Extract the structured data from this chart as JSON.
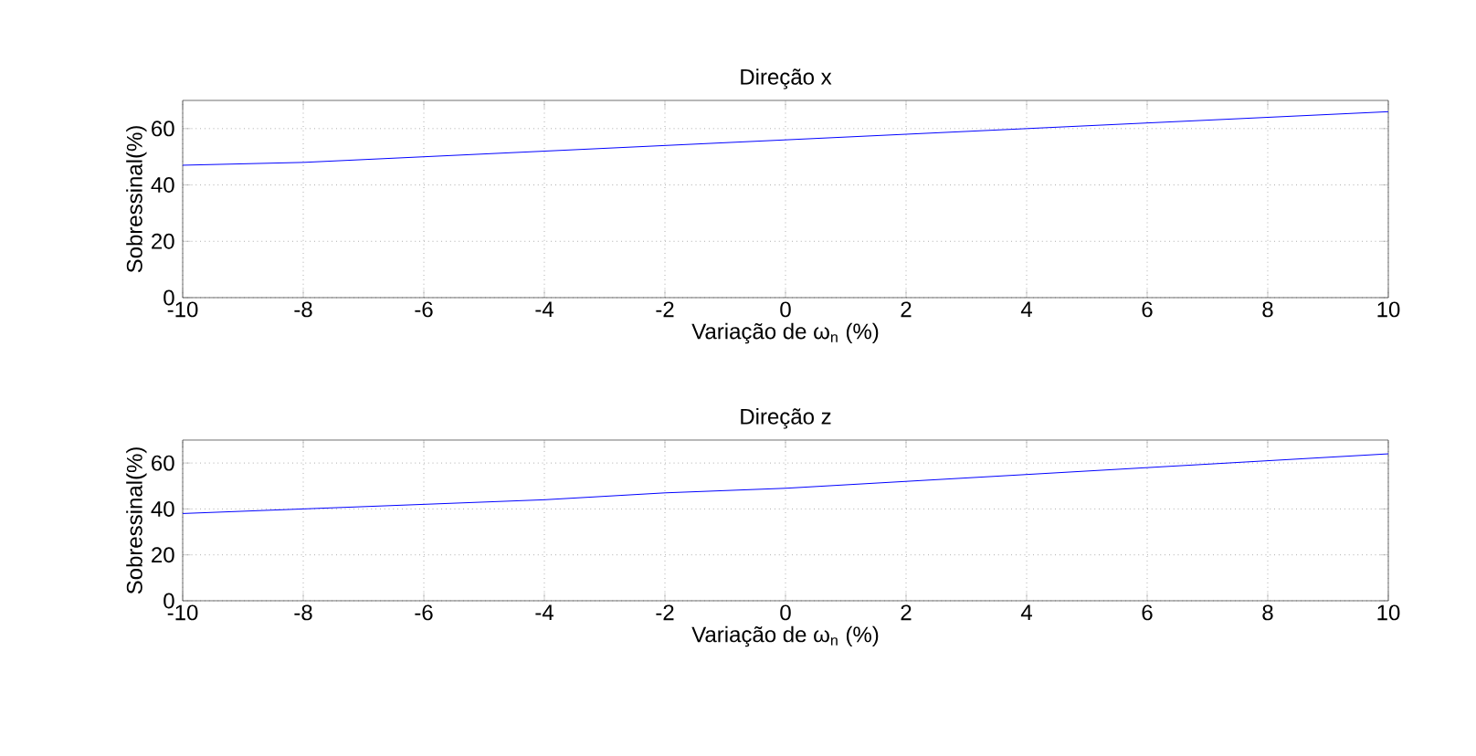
{
  "chart_data": [
    {
      "type": "line",
      "title": "Direção x",
      "xlabel": "Variação de ω$_{n}$ (%)",
      "ylabel": "Sobressinal(%)",
      "x": [
        -10,
        -8,
        -6,
        -4,
        -2,
        0,
        2,
        4,
        6,
        8,
        10
      ],
      "series": [
        {
          "color": "#0000ff",
          "values": [
            47,
            48,
            50,
            52,
            54,
            56,
            58,
            60,
            62,
            64,
            66
          ]
        }
      ],
      "xlim": [
        -10,
        10
      ],
      "ylim": [
        0,
        70
      ],
      "xticks": [
        -10,
        -8,
        -6,
        -4,
        -2,
        0,
        2,
        4,
        6,
        8,
        10
      ],
      "yticks": [
        0,
        20,
        40,
        60
      ],
      "grid": true,
      "marker": "none",
      "line_style": "solid"
    },
    {
      "type": "line",
      "title": "Direção z",
      "xlabel": "Variação de ω$_{n}$ (%)",
      "ylabel": "Sobressinal(%)",
      "x": [
        -10,
        -8,
        -6,
        -4,
        -2,
        0,
        2,
        4,
        6,
        8,
        10
      ],
      "series": [
        {
          "color": "#0000ff",
          "values": [
            38,
            40,
            42,
            44,
            47,
            49,
            52,
            55,
            58,
            61,
            64
          ]
        }
      ],
      "xlim": [
        -10,
        10
      ],
      "ylim": [
        0,
        70
      ],
      "xticks": [
        -10,
        -8,
        -6,
        -4,
        -2,
        0,
        2,
        4,
        6,
        8,
        10
      ],
      "yticks": [
        0,
        20,
        40,
        60
      ],
      "grid": true,
      "marker": "none",
      "line_style": "solid"
    }
  ]
}
